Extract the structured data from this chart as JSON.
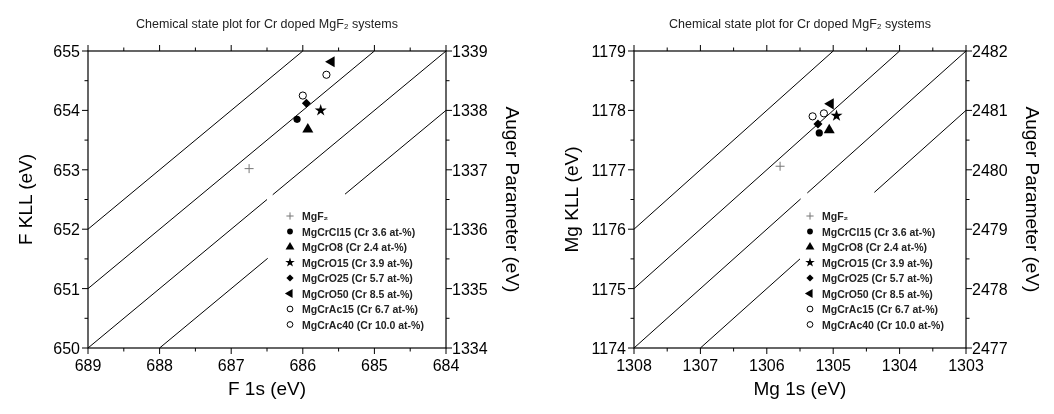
{
  "chart_data": [
    {
      "type": "scatter",
      "title": "Chemical state plot for Cr doped MgF₂ systems",
      "xlabel": "F 1s (eV)",
      "ylabel": "F KLL (eV)",
      "y2label": "Auger Parameter (eV)",
      "xlim": [
        689,
        684
      ],
      "xticks": [
        689,
        {
          "value": 688.5,
          "label": null
        },
        688,
        {
          "value": 687.5,
          "label": null
        },
        687,
        {
          "value": 686.5,
          "label": null
        },
        686,
        {
          "value": 685.5,
          "label": null
        },
        685,
        {
          "value": 684.5,
          "label": null
        },
        684
      ],
      "ylim": [
        650,
        655
      ],
      "yticks": [
        650,
        {
          "value": 650.5,
          "label": null
        },
        651,
        {
          "value": 651.5,
          "label": null
        },
        652,
        {
          "value": 652.5,
          "label": null
        },
        653,
        {
          "value": 653.5,
          "label": null
        },
        654,
        {
          "value": 654.5,
          "label": null
        },
        655
      ],
      "y2lim": [
        1334,
        1339
      ],
      "y2ticks": [
        1334,
        {
          "value": 1334.5,
          "label": null
        },
        1335,
        {
          "value": 1335.5,
          "label": null
        },
        1336,
        {
          "value": 1336.5,
          "label": null
        },
        1337,
        {
          "value": 1337.5,
          "label": null
        },
        1338,
        {
          "value": 1338.5,
          "label": null
        },
        1339
      ],
      "grid": false,
      "legend": "bottom right",
      "series": [
        {
          "type": "line",
          "color": "#000000",
          "x": [
            689,
            686
          ],
          "values": [
            652,
            655
          ]
        },
        {
          "type": "line",
          "color": "#000000",
          "x": [
            689,
            685
          ],
          "values": [
            651,
            655
          ]
        },
        {
          "type": "line",
          "color": "#000000",
          "x": [
            689,
            686.5,
            686.46,
            686.42,
            684
          ],
          "values": [
            650,
            652.5,
            null,
            652.58,
            655
          ]
        },
        {
          "type": "line",
          "color": "#000000",
          "x": [
            688,
            686.49,
            685.95,
            685.41,
            684
          ],
          "values": [
            650,
            651.51,
            null,
            652.59,
            654
          ]
        },
        {
          "name": "MgF₂",
          "marker": "cross",
          "color": "#777777",
          "x": [
            686.75
          ],
          "values": [
            653.02
          ]
        },
        {
          "name": "MgCrCl15 (Cr 3.6 at-%)",
          "marker": "circle",
          "color": "#000000",
          "x": [
            686.08
          ],
          "values": [
            653.85
          ]
        },
        {
          "name": "MgCrO8 (Cr 2.4 at-%)",
          "marker": "triangle",
          "color": "#000000",
          "x": [
            685.93
          ],
          "values": [
            653.68
          ]
        },
        {
          "name": "MgCrO15 (Cr 3.9 at-%)",
          "marker": "star",
          "color": "#000000",
          "x": [
            685.75
          ],
          "values": [
            654.0
          ]
        },
        {
          "name": "MgCrO25 (Cr 5.7 at-%)",
          "marker": "diamond",
          "color": "#000000",
          "x": [
            685.95
          ],
          "values": [
            654.12
          ]
        },
        {
          "name": "MgCrO50 (Cr 8.5 at-%)",
          "marker": "triangle-left",
          "color": "#000000",
          "x": [
            685.6
          ],
          "values": [
            654.82
          ]
        },
        {
          "name": "MgCrAc15 (Cr 6.7 at-%)",
          "marker": "circle-open",
          "color": "#000000",
          "x": [
            686.0
          ],
          "values": [
            654.25
          ]
        },
        {
          "name": "MgCrAc40 (Cr 10.0 at-%)",
          "marker": "circle-open",
          "color": "#000000",
          "x": [
            685.67
          ],
          "values": [
            654.6
          ]
        }
      ]
    },
    {
      "type": "scatter",
      "title": "Chemical state plot for Cr doped MgF₂ systems",
      "xlabel": "Mg 1s (eV)",
      "ylabel": "Mg KLL (eV)",
      "y2label": "Auger Parameter (eV)",
      "xlim": [
        1308,
        1303
      ],
      "xticks": [
        1308,
        {
          "value": 1307.5,
          "label": null
        },
        1307,
        {
          "value": 1306.5,
          "label": null
        },
        1306,
        {
          "value": 1305.5,
          "label": null
        },
        1305,
        {
          "value": 1304.5,
          "label": null
        },
        1304,
        {
          "value": 1303.5,
          "label": null
        },
        1303
      ],
      "ylim": [
        1174,
        1179
      ],
      "yticks": [
        1174,
        {
          "value": 1174.5,
          "label": null
        },
        1175,
        {
          "value": 1175.5,
          "label": null
        },
        1176,
        {
          "value": 1176.5,
          "label": null
        },
        1177,
        {
          "value": 1177.5,
          "label": null
        },
        1178,
        {
          "value": 1178.5,
          "label": null
        },
        1179
      ],
      "y2lim": [
        2477,
        2482
      ],
      "y2ticks": [
        2477,
        {
          "value": 2477.5,
          "label": null
        },
        2478,
        {
          "value": 2478.5,
          "label": null
        },
        2479,
        {
          "value": 2479.5,
          "label": null
        },
        2480,
        {
          "value": 2480.5,
          "label": null
        },
        2481,
        {
          "value": 2481.5,
          "label": null
        },
        2482
      ],
      "grid": false,
      "legend": "bottom right",
      "series": [
        {
          "type": "line",
          "color": "#000000",
          "x": [
            1308,
            1305
          ],
          "values": [
            1176,
            1179
          ]
        },
        {
          "type": "line",
          "color": "#000000",
          "x": [
            1308,
            1304
          ],
          "values": [
            1175,
            1179
          ]
        },
        {
          "type": "line",
          "color": "#000000",
          "x": [
            1308,
            1305.49,
            1305.44,
            1305.39,
            1303
          ],
          "values": [
            1174,
            1176.51,
            null,
            1176.61,
            1179
          ]
        },
        {
          "type": "line",
          "color": "#000000",
          "x": [
            1307,
            1305.5,
            1304.94,
            1304.38,
            1303
          ],
          "values": [
            1174,
            1175.5,
            null,
            1176.62,
            1178
          ]
        },
        {
          "name": "MgF₂",
          "marker": "cross",
          "color": "#777777",
          "x": [
            1305.8
          ],
          "values": [
            1177.06
          ]
        },
        {
          "name": "MgCrCl15 (Cr 3.6 at-%)",
          "marker": "circle",
          "color": "#000000",
          "x": [
            1305.21
          ],
          "values": [
            1177.62
          ]
        },
        {
          "name": "MgCrO8 (Cr 2.4 at-%)",
          "marker": "triangle",
          "color": "#000000",
          "x": [
            1305.06
          ],
          "values": [
            1177.67
          ]
        },
        {
          "name": "MgCrO15 (Cr 3.9 at-%)",
          "marker": "star",
          "color": "#000000",
          "x": [
            1304.95
          ],
          "values": [
            1177.91
          ]
        },
        {
          "name": "MgCrO25 (Cr 5.7 at-%)",
          "marker": "diamond",
          "color": "#000000",
          "x": [
            1305.23
          ],
          "values": [
            1177.77
          ]
        },
        {
          "name": "MgCrO50 (Cr 8.5 at-%)",
          "marker": "triangle-left",
          "color": "#000000",
          "x": [
            1305.04
          ],
          "values": [
            1178.11
          ]
        },
        {
          "name": "MgCrAc15 (Cr 6.7 at-%)",
          "marker": "circle-open",
          "color": "#000000",
          "x": [
            1305.31
          ],
          "values": [
            1177.9
          ]
        },
        {
          "name": "MgCrAc40 (Cr 10.0 at-%)",
          "marker": "circle-open",
          "color": "#000000",
          "x": [
            1305.14
          ],
          "values": [
            1177.95
          ]
        }
      ]
    }
  ]
}
